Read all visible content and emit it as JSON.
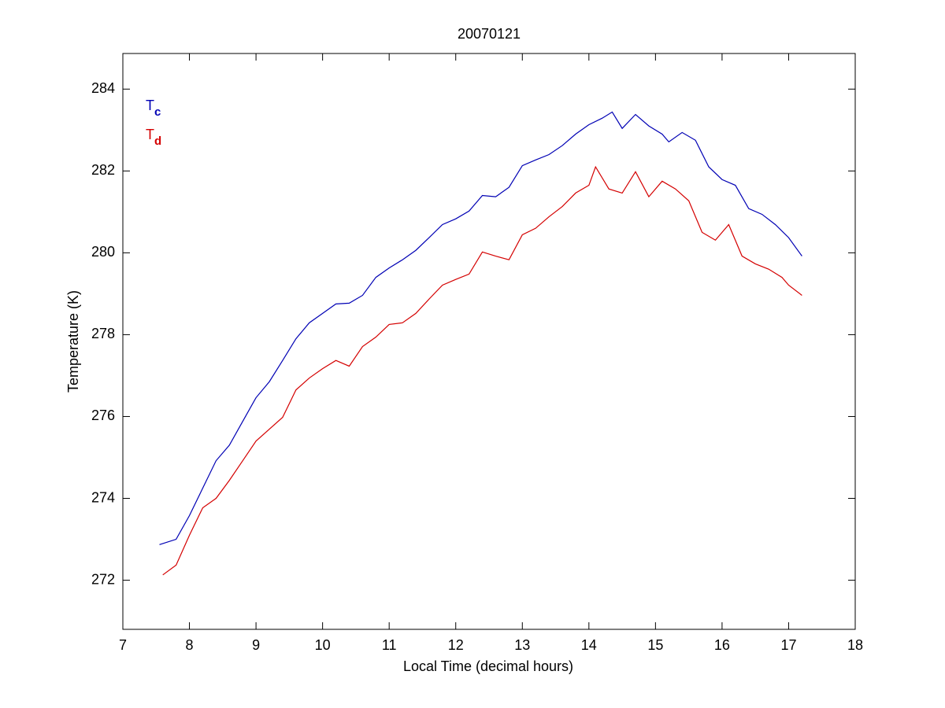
{
  "chart_data": {
    "type": "line",
    "title": "20070121",
    "xlabel": "Local Time (decimal hours)",
    "ylabel": "Temperature (K)",
    "xlim": [
      7,
      18
    ],
    "xticks": [
      7,
      8,
      9,
      10,
      11,
      12,
      13,
      14,
      15,
      16,
      17,
      18
    ],
    "ylim": [
      270.8,
      284.87
    ],
    "yticks": [
      272,
      274,
      276,
      278,
      280,
      282,
      284
    ],
    "grid": false,
    "legend": "upper left",
    "series": [
      {
        "name": "T",
        "subscript": "c",
        "color": "#0000b4",
        "x": [
          7.55,
          7.8,
          8.0,
          8.2,
          8.4,
          8.6,
          8.8,
          9.0,
          9.2,
          9.4,
          9.6,
          9.8,
          10.0,
          10.2,
          10.4,
          10.6,
          10.8,
          11.0,
          11.2,
          11.4,
          11.6,
          11.8,
          12.0,
          12.2,
          12.4,
          12.6,
          12.8,
          13.0,
          13.2,
          13.4,
          13.6,
          13.8,
          14.0,
          14.2,
          14.35,
          14.5,
          14.7,
          14.9,
          15.1,
          15.2,
          15.4,
          15.6,
          15.8,
          16.0,
          16.2,
          16.4,
          16.6,
          16.8,
          17.0,
          17.2
        ],
        "values": [
          272.87,
          273.0,
          273.58,
          274.25,
          274.92,
          275.3,
          275.88,
          276.46,
          276.85,
          277.37,
          277.9,
          278.29,
          278.52,
          278.75,
          278.77,
          278.96,
          279.4,
          279.63,
          279.83,
          280.06,
          280.37,
          280.69,
          280.83,
          281.02,
          281.4,
          281.37,
          281.6,
          282.13,
          282.27,
          282.4,
          282.62,
          282.9,
          283.13,
          283.29,
          283.44,
          283.04,
          283.38,
          283.1,
          282.9,
          282.71,
          282.94,
          282.75,
          282.1,
          281.79,
          281.65,
          281.08,
          280.94,
          280.69,
          280.37,
          279.92
        ]
      },
      {
        "name": "T",
        "subscript": "d",
        "color": "#d40000",
        "x": [
          7.6,
          7.8,
          8.0,
          8.2,
          8.4,
          8.6,
          8.8,
          9.0,
          9.2,
          9.4,
          9.6,
          9.8,
          10.0,
          10.2,
          10.4,
          10.6,
          10.8,
          11.0,
          11.2,
          11.4,
          11.6,
          11.8,
          12.0,
          12.2,
          12.4,
          12.6,
          12.8,
          13.0,
          13.2,
          13.4,
          13.6,
          13.8,
          14.0,
          14.1,
          14.3,
          14.5,
          14.7,
          14.9,
          15.1,
          15.3,
          15.5,
          15.7,
          15.9,
          16.1,
          16.3,
          16.5,
          16.7,
          16.9,
          17.0,
          17.2
        ],
        "values": [
          272.13,
          272.37,
          273.1,
          273.77,
          274.0,
          274.44,
          274.92,
          275.4,
          275.69,
          275.98,
          276.65,
          276.94,
          277.17,
          277.37,
          277.23,
          277.71,
          277.94,
          278.25,
          278.29,
          278.52,
          278.87,
          279.21,
          279.35,
          279.48,
          280.02,
          279.92,
          279.83,
          280.44,
          280.6,
          280.88,
          281.13,
          281.46,
          281.65,
          282.1,
          281.56,
          281.46,
          281.98,
          281.37,
          281.75,
          281.56,
          281.27,
          280.5,
          280.31,
          280.69,
          279.92,
          279.73,
          279.6,
          279.4,
          279.21,
          278.96
        ]
      }
    ]
  }
}
